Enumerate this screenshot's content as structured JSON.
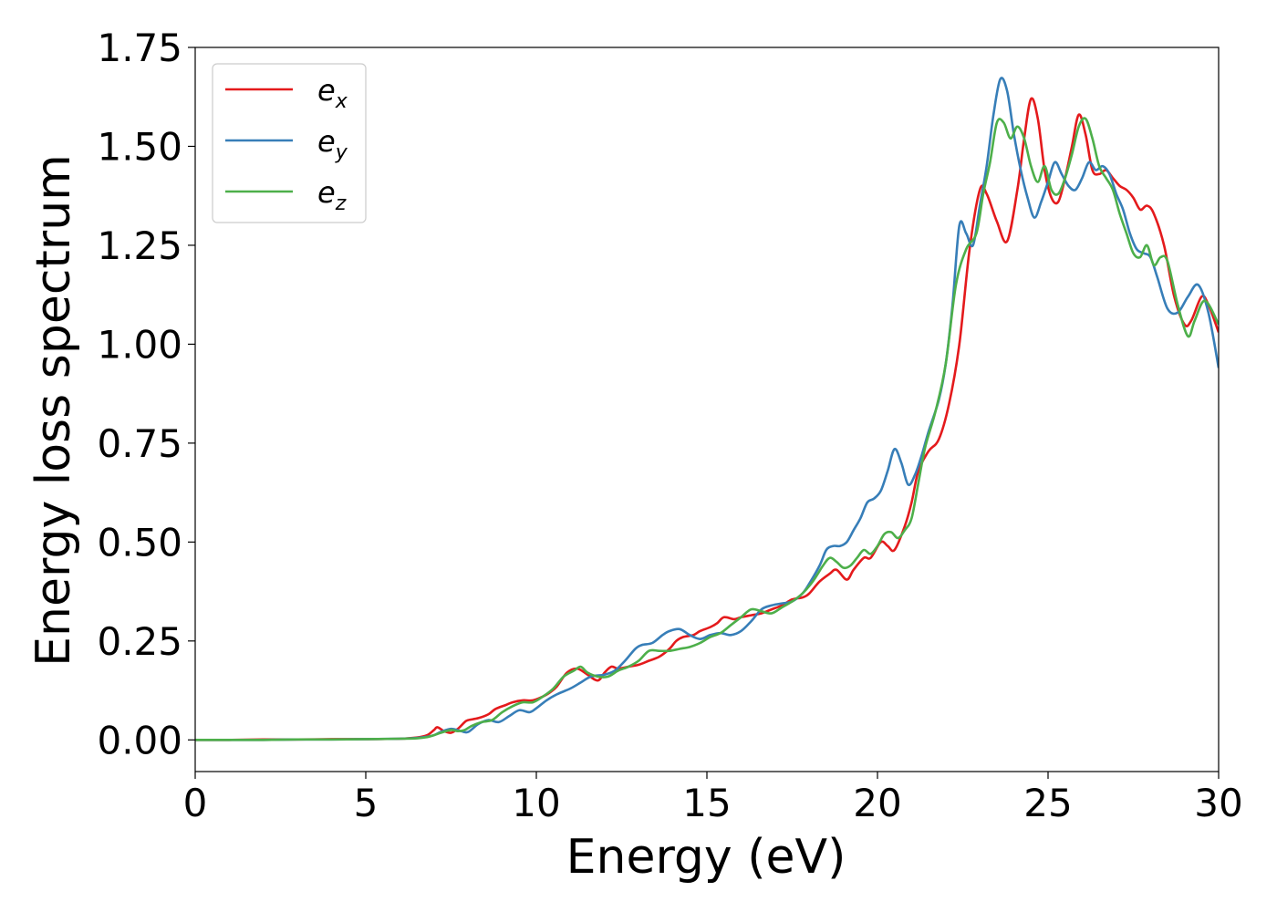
{
  "chart_data": {
    "type": "line",
    "title": "",
    "xlabel": "Energy (eV)",
    "ylabel": "Energy loss spectrum",
    "xlim": [
      0,
      30
    ],
    "ylim": [
      -0.08,
      1.75
    ],
    "xticks": [
      0,
      5,
      10,
      15,
      20,
      25,
      30
    ],
    "xtick_labels": [
      "0",
      "5",
      "10",
      "15",
      "20",
      "25",
      "30"
    ],
    "yticks": [
      0.0,
      0.25,
      0.5,
      0.75,
      1.0,
      1.25,
      1.5,
      1.75
    ],
    "ytick_labels": [
      "0.00",
      "0.25",
      "0.50",
      "0.75",
      "1.00",
      "1.25",
      "1.50",
      "1.75"
    ],
    "grid": false,
    "legend_position": "top-left",
    "series": [
      {
        "name": "e_x",
        "label_base": "e",
        "label_sub": "x",
        "color": "#e41a1c",
        "x": [
          0,
          1,
          2,
          3,
          4,
          5,
          6,
          6.5,
          6.8,
          7.0,
          7.1,
          7.3,
          7.5,
          7.7,
          7.9,
          8.0,
          8.3,
          8.6,
          8.8,
          9.1,
          9.3,
          9.6,
          9.9,
          10.2,
          10.4,
          10.6,
          10.9,
          11.2,
          11.5,
          11.8,
          12.0,
          12.2,
          12.4,
          12.7,
          13.0,
          13.3,
          13.6,
          13.9,
          14.1,
          14.3,
          14.6,
          14.8,
          15.1,
          15.3,
          15.5,
          15.8,
          16.0,
          16.3,
          16.6,
          16.9,
          17.2,
          17.5,
          17.8,
          18.0,
          18.3,
          18.6,
          18.8,
          19.1,
          19.3,
          19.6,
          19.8,
          20.1,
          20.3,
          20.5,
          20.8,
          21.0,
          21.2,
          21.5,
          21.8,
          22.1,
          22.4,
          22.7,
          23.0,
          23.2,
          23.5,
          23.8,
          24.1,
          24.3,
          24.5,
          24.7,
          24.9,
          25.1,
          25.3,
          25.5,
          25.7,
          25.9,
          26.1,
          26.3,
          26.5,
          26.7,
          26.9,
          27.1,
          27.3,
          27.5,
          27.7,
          27.9,
          28.1,
          28.4,
          28.7,
          29.0,
          29.2,
          29.5,
          29.7,
          30.0
        ],
        "y": [
          0,
          0,
          0.001,
          0.001,
          0.002,
          0.002,
          0.003,
          0.006,
          0.012,
          0.025,
          0.032,
          0.022,
          0.018,
          0.028,
          0.045,
          0.05,
          0.055,
          0.065,
          0.078,
          0.088,
          0.095,
          0.1,
          0.1,
          0.11,
          0.12,
          0.135,
          0.17,
          0.18,
          0.165,
          0.15,
          0.17,
          0.185,
          0.18,
          0.185,
          0.19,
          0.2,
          0.21,
          0.23,
          0.25,
          0.26,
          0.265,
          0.275,
          0.285,
          0.295,
          0.31,
          0.305,
          0.31,
          0.315,
          0.32,
          0.33,
          0.34,
          0.355,
          0.36,
          0.37,
          0.4,
          0.42,
          0.43,
          0.405,
          0.43,
          0.46,
          0.46,
          0.5,
          0.49,
          0.48,
          0.54,
          0.6,
          0.68,
          0.73,
          0.76,
          0.85,
          1.0,
          1.24,
          1.39,
          1.38,
          1.31,
          1.26,
          1.39,
          1.52,
          1.62,
          1.57,
          1.44,
          1.37,
          1.36,
          1.42,
          1.5,
          1.58,
          1.53,
          1.44,
          1.43,
          1.44,
          1.42,
          1.4,
          1.39,
          1.37,
          1.34,
          1.35,
          1.33,
          1.25,
          1.12,
          1.05,
          1.06,
          1.12,
          1.1,
          1.03
        ]
      },
      {
        "name": "e_y",
        "label_base": "e",
        "label_sub": "y",
        "color": "#377eb8",
        "x": [
          0,
          1,
          2,
          3,
          4,
          5,
          6,
          6.5,
          6.8,
          7.0,
          7.2,
          7.5,
          7.8,
          8.0,
          8.3,
          8.6,
          8.9,
          9.2,
          9.5,
          9.8,
          10.0,
          10.3,
          10.6,
          11.0,
          11.3,
          11.6,
          12.0,
          12.3,
          12.6,
          12.9,
          13.1,
          13.4,
          13.7,
          13.9,
          14.2,
          14.5,
          14.8,
          15.1,
          15.4,
          15.7,
          16.0,
          16.3,
          16.6,
          16.9,
          17.2,
          17.5,
          17.8,
          18.0,
          18.3,
          18.5,
          18.7,
          18.9,
          19.1,
          19.3,
          19.5,
          19.7,
          19.9,
          20.1,
          20.3,
          20.5,
          20.7,
          20.9,
          21.1,
          21.3,
          21.5,
          21.8,
          22.0,
          22.2,
          22.4,
          22.6,
          22.8,
          23.0,
          23.2,
          23.4,
          23.6,
          23.8,
          24.0,
          24.2,
          24.4,
          24.6,
          24.8,
          25.0,
          25.2,
          25.4,
          25.6,
          25.8,
          26.0,
          26.2,
          26.4,
          26.6,
          26.8,
          27.0,
          27.2,
          27.4,
          27.6,
          27.8,
          28.0,
          28.2,
          28.5,
          28.8,
          29.1,
          29.4,
          29.7,
          30.0
        ],
        "y": [
          0,
          0,
          0,
          0.001,
          0.001,
          0.002,
          0.003,
          0.005,
          0.008,
          0.012,
          0.02,
          0.028,
          0.022,
          0.02,
          0.04,
          0.05,
          0.045,
          0.06,
          0.075,
          0.07,
          0.08,
          0.1,
          0.115,
          0.13,
          0.145,
          0.16,
          0.165,
          0.175,
          0.2,
          0.23,
          0.24,
          0.245,
          0.265,
          0.275,
          0.28,
          0.265,
          0.255,
          0.265,
          0.27,
          0.265,
          0.275,
          0.3,
          0.33,
          0.34,
          0.345,
          0.35,
          0.37,
          0.395,
          0.44,
          0.48,
          0.49,
          0.49,
          0.5,
          0.53,
          0.56,
          0.6,
          0.61,
          0.63,
          0.68,
          0.735,
          0.7,
          0.645,
          0.67,
          0.72,
          0.78,
          0.86,
          0.95,
          1.1,
          1.3,
          1.28,
          1.25,
          1.35,
          1.45,
          1.58,
          1.67,
          1.64,
          1.53,
          1.44,
          1.37,
          1.32,
          1.36,
          1.41,
          1.46,
          1.43,
          1.4,
          1.39,
          1.42,
          1.46,
          1.44,
          1.45,
          1.43,
          1.38,
          1.34,
          1.28,
          1.24,
          1.23,
          1.22,
          1.17,
          1.09,
          1.08,
          1.12,
          1.15,
          1.08,
          0.94
        ]
      },
      {
        "name": "e_z",
        "label_base": "e",
        "label_sub": "z",
        "color": "#4daf4a",
        "x": [
          0,
          1,
          2,
          3,
          4,
          5,
          6,
          6.5,
          6.8,
          7.0,
          7.2,
          7.5,
          7.7,
          7.9,
          8.1,
          8.4,
          8.7,
          9.0,
          9.3,
          9.6,
          9.9,
          10.2,
          10.5,
          10.8,
          11.1,
          11.3,
          11.5,
          11.8,
          12.1,
          12.4,
          12.7,
          13.0,
          13.3,
          13.6,
          13.9,
          14.2,
          14.5,
          14.8,
          15.1,
          15.4,
          15.7,
          16.0,
          16.3,
          16.6,
          16.9,
          17.2,
          17.5,
          17.8,
          18.1,
          18.4,
          18.6,
          18.8,
          19.0,
          19.2,
          19.4,
          19.6,
          19.8,
          20.0,
          20.2,
          20.4,
          20.6,
          20.8,
          21.0,
          21.2,
          21.4,
          21.7,
          22.0,
          22.3,
          22.6,
          22.9,
          23.1,
          23.3,
          23.5,
          23.7,
          23.9,
          24.1,
          24.3,
          24.5,
          24.7,
          24.9,
          25.1,
          25.3,
          25.5,
          25.7,
          25.9,
          26.1,
          26.3,
          26.5,
          26.7,
          26.9,
          27.1,
          27.3,
          27.5,
          27.7,
          27.9,
          28.1,
          28.3,
          28.5,
          28.8,
          29.1,
          29.3,
          29.6,
          30.0
        ],
        "y": [
          0,
          0,
          0,
          0.001,
          0.001,
          0.002,
          0.003,
          0.004,
          0.007,
          0.012,
          0.018,
          0.025,
          0.022,
          0.025,
          0.035,
          0.045,
          0.05,
          0.07,
          0.085,
          0.095,
          0.095,
          0.11,
          0.13,
          0.16,
          0.175,
          0.185,
          0.17,
          0.16,
          0.16,
          0.175,
          0.185,
          0.2,
          0.225,
          0.225,
          0.225,
          0.23,
          0.235,
          0.245,
          0.26,
          0.27,
          0.29,
          0.31,
          0.33,
          0.325,
          0.32,
          0.335,
          0.35,
          0.37,
          0.4,
          0.44,
          0.46,
          0.45,
          0.435,
          0.44,
          0.46,
          0.48,
          0.47,
          0.49,
          0.52,
          0.525,
          0.51,
          0.53,
          0.56,
          0.65,
          0.74,
          0.83,
          0.95,
          1.15,
          1.24,
          1.28,
          1.38,
          1.46,
          1.56,
          1.56,
          1.52,
          1.55,
          1.52,
          1.45,
          1.41,
          1.45,
          1.39,
          1.38,
          1.42,
          1.48,
          1.55,
          1.57,
          1.52,
          1.45,
          1.42,
          1.39,
          1.33,
          1.28,
          1.23,
          1.22,
          1.25,
          1.2,
          1.22,
          1.21,
          1.1,
          1.02,
          1.06,
          1.11,
          1.05
        ]
      }
    ]
  }
}
